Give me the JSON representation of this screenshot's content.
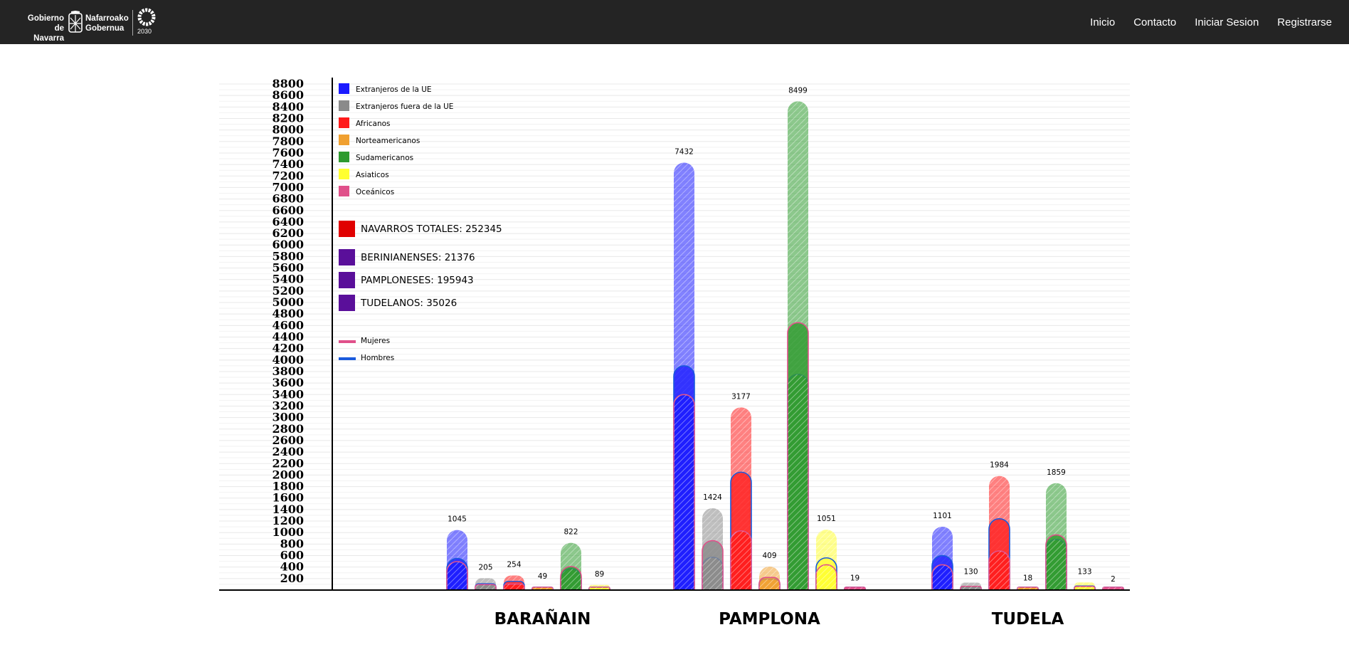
{
  "header": {
    "logo": {
      "left_text": [
        "Gobierno",
        "de Navarra"
      ],
      "right_text": [
        "Nafarroako",
        "Gobernua"
      ],
      "badge": "2030"
    },
    "nav": [
      {
        "label": "Inicio"
      },
      {
        "label": "Contacto"
      },
      {
        "label": "Iniciar Sesion"
      },
      {
        "label": "Registrarse"
      }
    ]
  },
  "colors": {
    "ue": "#1a1aff",
    "fuera_ue": "#8a8a8a",
    "africanos": "#ff1a1a",
    "norteamericanos": "#f0a030",
    "sudamericanos": "#2e9a2e",
    "asiaticos": "#ffff30",
    "oceanicos": "#e0508a",
    "navarros": "#e00000",
    "municipal": "#5a0f9a",
    "mujeres": "#e0508a",
    "hombres": "#1a5adc",
    "axis": "#000000",
    "grid": "#e8e8e8"
  },
  "chart_data": {
    "type": "bar",
    "ylim": [
      0,
      8800
    ],
    "ytick_step": 200,
    "ytick_labels": [
      "8800",
      "8600",
      "8400",
      "8200",
      "8000",
      "7800",
      "7600",
      "7400",
      "7200",
      "7000",
      "6800",
      "6600",
      "6400",
      "6200",
      "6000",
      "5800",
      "5600",
      "5400",
      "5200",
      "5000",
      "4800",
      "4600",
      "4400",
      "4200",
      "4000",
      "3800",
      "3600",
      "3400",
      "3200",
      "3000",
      "2800",
      "2600",
      "2400",
      "2200",
      "2000",
      "1800",
      "1600",
      "1400",
      "1200",
      "1000",
      "800",
      "600",
      "400",
      "200"
    ],
    "categories": [
      "BARAÑAIN",
      "PAMPLONA",
      "TUDELA"
    ],
    "series": [
      {
        "name": "Extranjeros de la UE",
        "key": "ue",
        "values": [
          1045,
          7432,
          1101
        ],
        "hombres": [
          550,
          3900,
          600
        ],
        "mujeres": [
          495,
          3400,
          440
        ]
      },
      {
        "name": "Extranjeros fuera de la UE",
        "key": "fuera_ue",
        "values": [
          205,
          1424,
          130
        ],
        "hombres": [
          110,
          570,
          65
        ],
        "mujeres": [
          95,
          860,
          65
        ]
      },
      {
        "name": "Africanos",
        "key": "africanos",
        "values": [
          254,
          3177,
          1984
        ],
        "hombres": [
          150,
          2050,
          1240
        ],
        "mujeres": [
          104,
          1030,
          680
        ]
      },
      {
        "name": "Norteamericanos",
        "key": "norteamericanos",
        "values": [
          49,
          409,
          18
        ],
        "hombres": [
          22,
          190,
          8
        ],
        "mujeres": [
          27,
          219,
          10
        ]
      },
      {
        "name": "Sudamericanos",
        "key": "sudamericanos",
        "values": [
          822,
          8499,
          1859
        ],
        "hombres": [
          370,
          3750,
          880
        ],
        "mujeres": [
          410,
          4650,
          960
        ]
      },
      {
        "name": "Asiaticos",
        "key": "asiaticos",
        "values": [
          89,
          1051,
          133
        ],
        "hombres": [
          50,
          560,
          70
        ],
        "mujeres": [
          39,
          440,
          63
        ]
      },
      {
        "name": "Oceánicos",
        "key": "oceanicos",
        "values": [
          0,
          19,
          2
        ],
        "hombres": [
          0,
          10,
          1
        ],
        "mujeres": [
          0,
          9,
          1
        ]
      }
    ],
    "value_labels": [
      [
        "1045",
        "205",
        "254",
        "49",
        "822",
        "89",
        ""
      ],
      [
        "7432",
        "1424",
        "3177",
        "409",
        "8499",
        "1051",
        "19"
      ],
      [
        "1101",
        "130",
        "1984",
        "18",
        "1859",
        "133",
        "2"
      ]
    ],
    "totals": [
      {
        "label": "NAVARROS TOTALES: 252345",
        "key": "navarros"
      },
      {
        "label": "BERINIANENSES: 21376",
        "key": "municipal"
      },
      {
        "label": "PAMPLONESES: 195943",
        "key": "municipal"
      },
      {
        "label": "TUDELANOS: 35026",
        "key": "municipal"
      }
    ],
    "gender_legend": [
      {
        "label": "Mujeres",
        "key": "mujeres"
      },
      {
        "label": "Hombres",
        "key": "hombres"
      }
    ],
    "legend_position": "top-left"
  }
}
